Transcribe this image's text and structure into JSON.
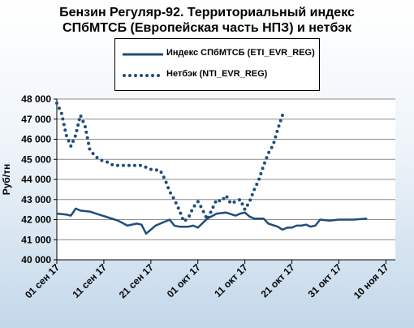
{
  "title_line1": "Бензин Регуляр-92. Территориальный индекс",
  "title_line2": "СПбМТСБ (Европейская часть НПЗ) и нетбэк",
  "chart_data": {
    "type": "line",
    "ylabel": "Руб/тн",
    "ylim": [
      40000,
      48000
    ],
    "y_ticks": [
      "40 000",
      "41 000",
      "42 000",
      "43 000",
      "44 000",
      "45 000",
      "46 000",
      "47 000",
      "48 000"
    ],
    "x_ticks": [
      "01 сен 17",
      "11 сен 17",
      "21 сен 17",
      "01 окт 17",
      "11 окт 17",
      "21 окт 17",
      "31 окт 17",
      "10 ноя 17"
    ],
    "x_tick_days": [
      0,
      10,
      20,
      30,
      40,
      50,
      60,
      70
    ],
    "x_range_days": [
      0,
      72
    ],
    "grid": "horizontal",
    "legend_position": "top-center",
    "series": [
      {
        "name": "Индекс СПбМТСБ  (ETI_EVR_REG)",
        "style": "solid",
        "color": "#1f4e79",
        "points": [
          [
            0,
            42300
          ],
          [
            2,
            42250
          ],
          [
            3,
            42200
          ],
          [
            4,
            42550
          ],
          [
            5,
            42450
          ],
          [
            7,
            42400
          ],
          [
            9,
            42250
          ],
          [
            11,
            42100
          ],
          [
            13,
            41950
          ],
          [
            15,
            41700
          ],
          [
            17,
            41800
          ],
          [
            18,
            41750
          ],
          [
            19,
            41300
          ],
          [
            21,
            41700
          ],
          [
            23,
            41900
          ],
          [
            24,
            42000
          ],
          [
            25,
            41700
          ],
          [
            26,
            41650
          ],
          [
            28,
            41650
          ],
          [
            29,
            41700
          ],
          [
            30,
            41600
          ],
          [
            32,
            42050
          ],
          [
            34,
            42300
          ],
          [
            36,
            42350
          ],
          [
            38,
            42200
          ],
          [
            39,
            42300
          ],
          [
            40,
            42350
          ],
          [
            41,
            42150
          ],
          [
            42,
            42050
          ],
          [
            44,
            42050
          ],
          [
            45,
            41800
          ],
          [
            47,
            41650
          ],
          [
            48,
            41500
          ],
          [
            49,
            41600
          ],
          [
            50,
            41600
          ],
          [
            51,
            41700
          ],
          [
            52,
            41700
          ],
          [
            53,
            41750
          ],
          [
            54,
            41650
          ],
          [
            55,
            41700
          ],
          [
            56,
            42000
          ],
          [
            58,
            41950
          ],
          [
            60,
            42000
          ],
          [
            63,
            42000
          ],
          [
            66,
            42050
          ]
        ]
      },
      {
        "name": "Нетбэк (NTI_EVR_REG)",
        "style": "dotted",
        "color": "#1f4e79",
        "points": [
          [
            0,
            47800
          ],
          [
            1,
            47300
          ],
          [
            2,
            46200
          ],
          [
            3,
            45650
          ],
          [
            4,
            46200
          ],
          [
            5,
            47200
          ],
          [
            6,
            46650
          ],
          [
            7,
            45500
          ],
          [
            8,
            45200
          ],
          [
            9,
            45000
          ],
          [
            10,
            44900
          ],
          [
            11,
            44850
          ],
          [
            12,
            44700
          ],
          [
            14,
            44700
          ],
          [
            16,
            44700
          ],
          [
            18,
            44700
          ],
          [
            20,
            44500
          ],
          [
            22,
            44450
          ],
          [
            23,
            44000
          ],
          [
            24,
            43400
          ],
          [
            25,
            43000
          ],
          [
            26,
            42500
          ],
          [
            27,
            41900
          ],
          [
            28,
            42100
          ],
          [
            29,
            42600
          ],
          [
            30,
            42900
          ],
          [
            31,
            42500
          ],
          [
            32,
            42000
          ],
          [
            33,
            42500
          ],
          [
            34,
            43000
          ],
          [
            35,
            42900
          ],
          [
            36,
            43200
          ],
          [
            37,
            42800
          ],
          [
            38,
            42900
          ],
          [
            39,
            43000
          ],
          [
            40,
            42500
          ],
          [
            41,
            42900
          ],
          [
            42,
            43500
          ],
          [
            43,
            44000
          ],
          [
            44,
            44700
          ],
          [
            45,
            45300
          ],
          [
            46,
            45700
          ],
          [
            47,
            46500
          ],
          [
            48,
            47200
          ]
        ]
      }
    ]
  }
}
